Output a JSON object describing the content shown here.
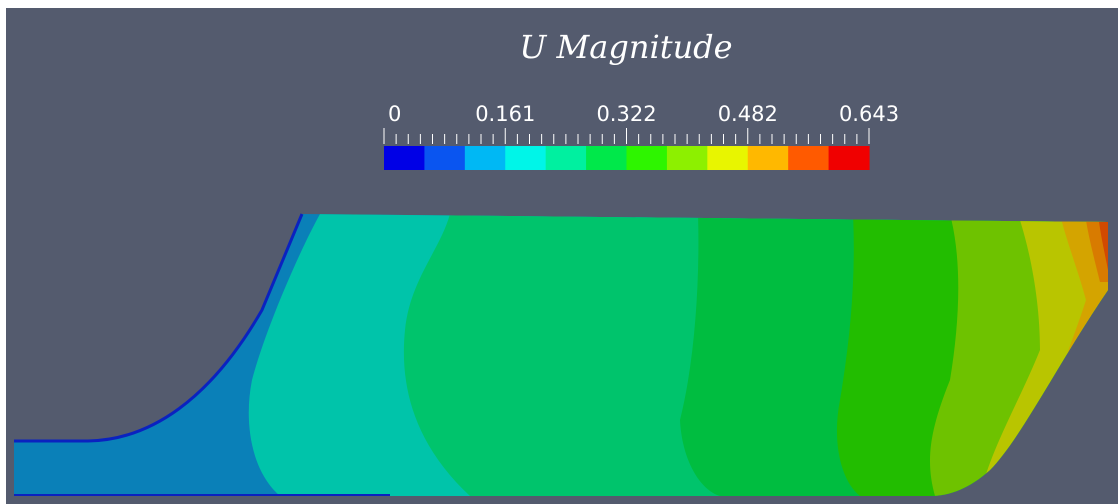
{
  "colorbar": {
    "title": "U Magnitude",
    "tick_labels": [
      "0",
      "0.161",
      "0.322",
      "0.482",
      "0.643"
    ],
    "range": [
      0,
      0.643
    ],
    "swatches": [
      "#0000e6",
      "#0a55f0",
      "#00b8f4",
      "#00f5e8",
      "#00f0a0",
      "#00e84a",
      "#2ef500",
      "#8df000",
      "#e8f500",
      "#ffb800",
      "#ff5a00",
      "#f00000"
    ]
  },
  "colors": {
    "background": "#545b6e",
    "frame": "#ffffff",
    "wall": "#0a22c0",
    "bands": [
      "#0a80b8",
      "#00c4aa",
      "#00c46c",
      "#00bd40",
      "#22bd00",
      "#6ec200",
      "#b9c500",
      "#d4a400",
      "#d87b00",
      "#d24a00",
      "#cc0000"
    ]
  }
}
